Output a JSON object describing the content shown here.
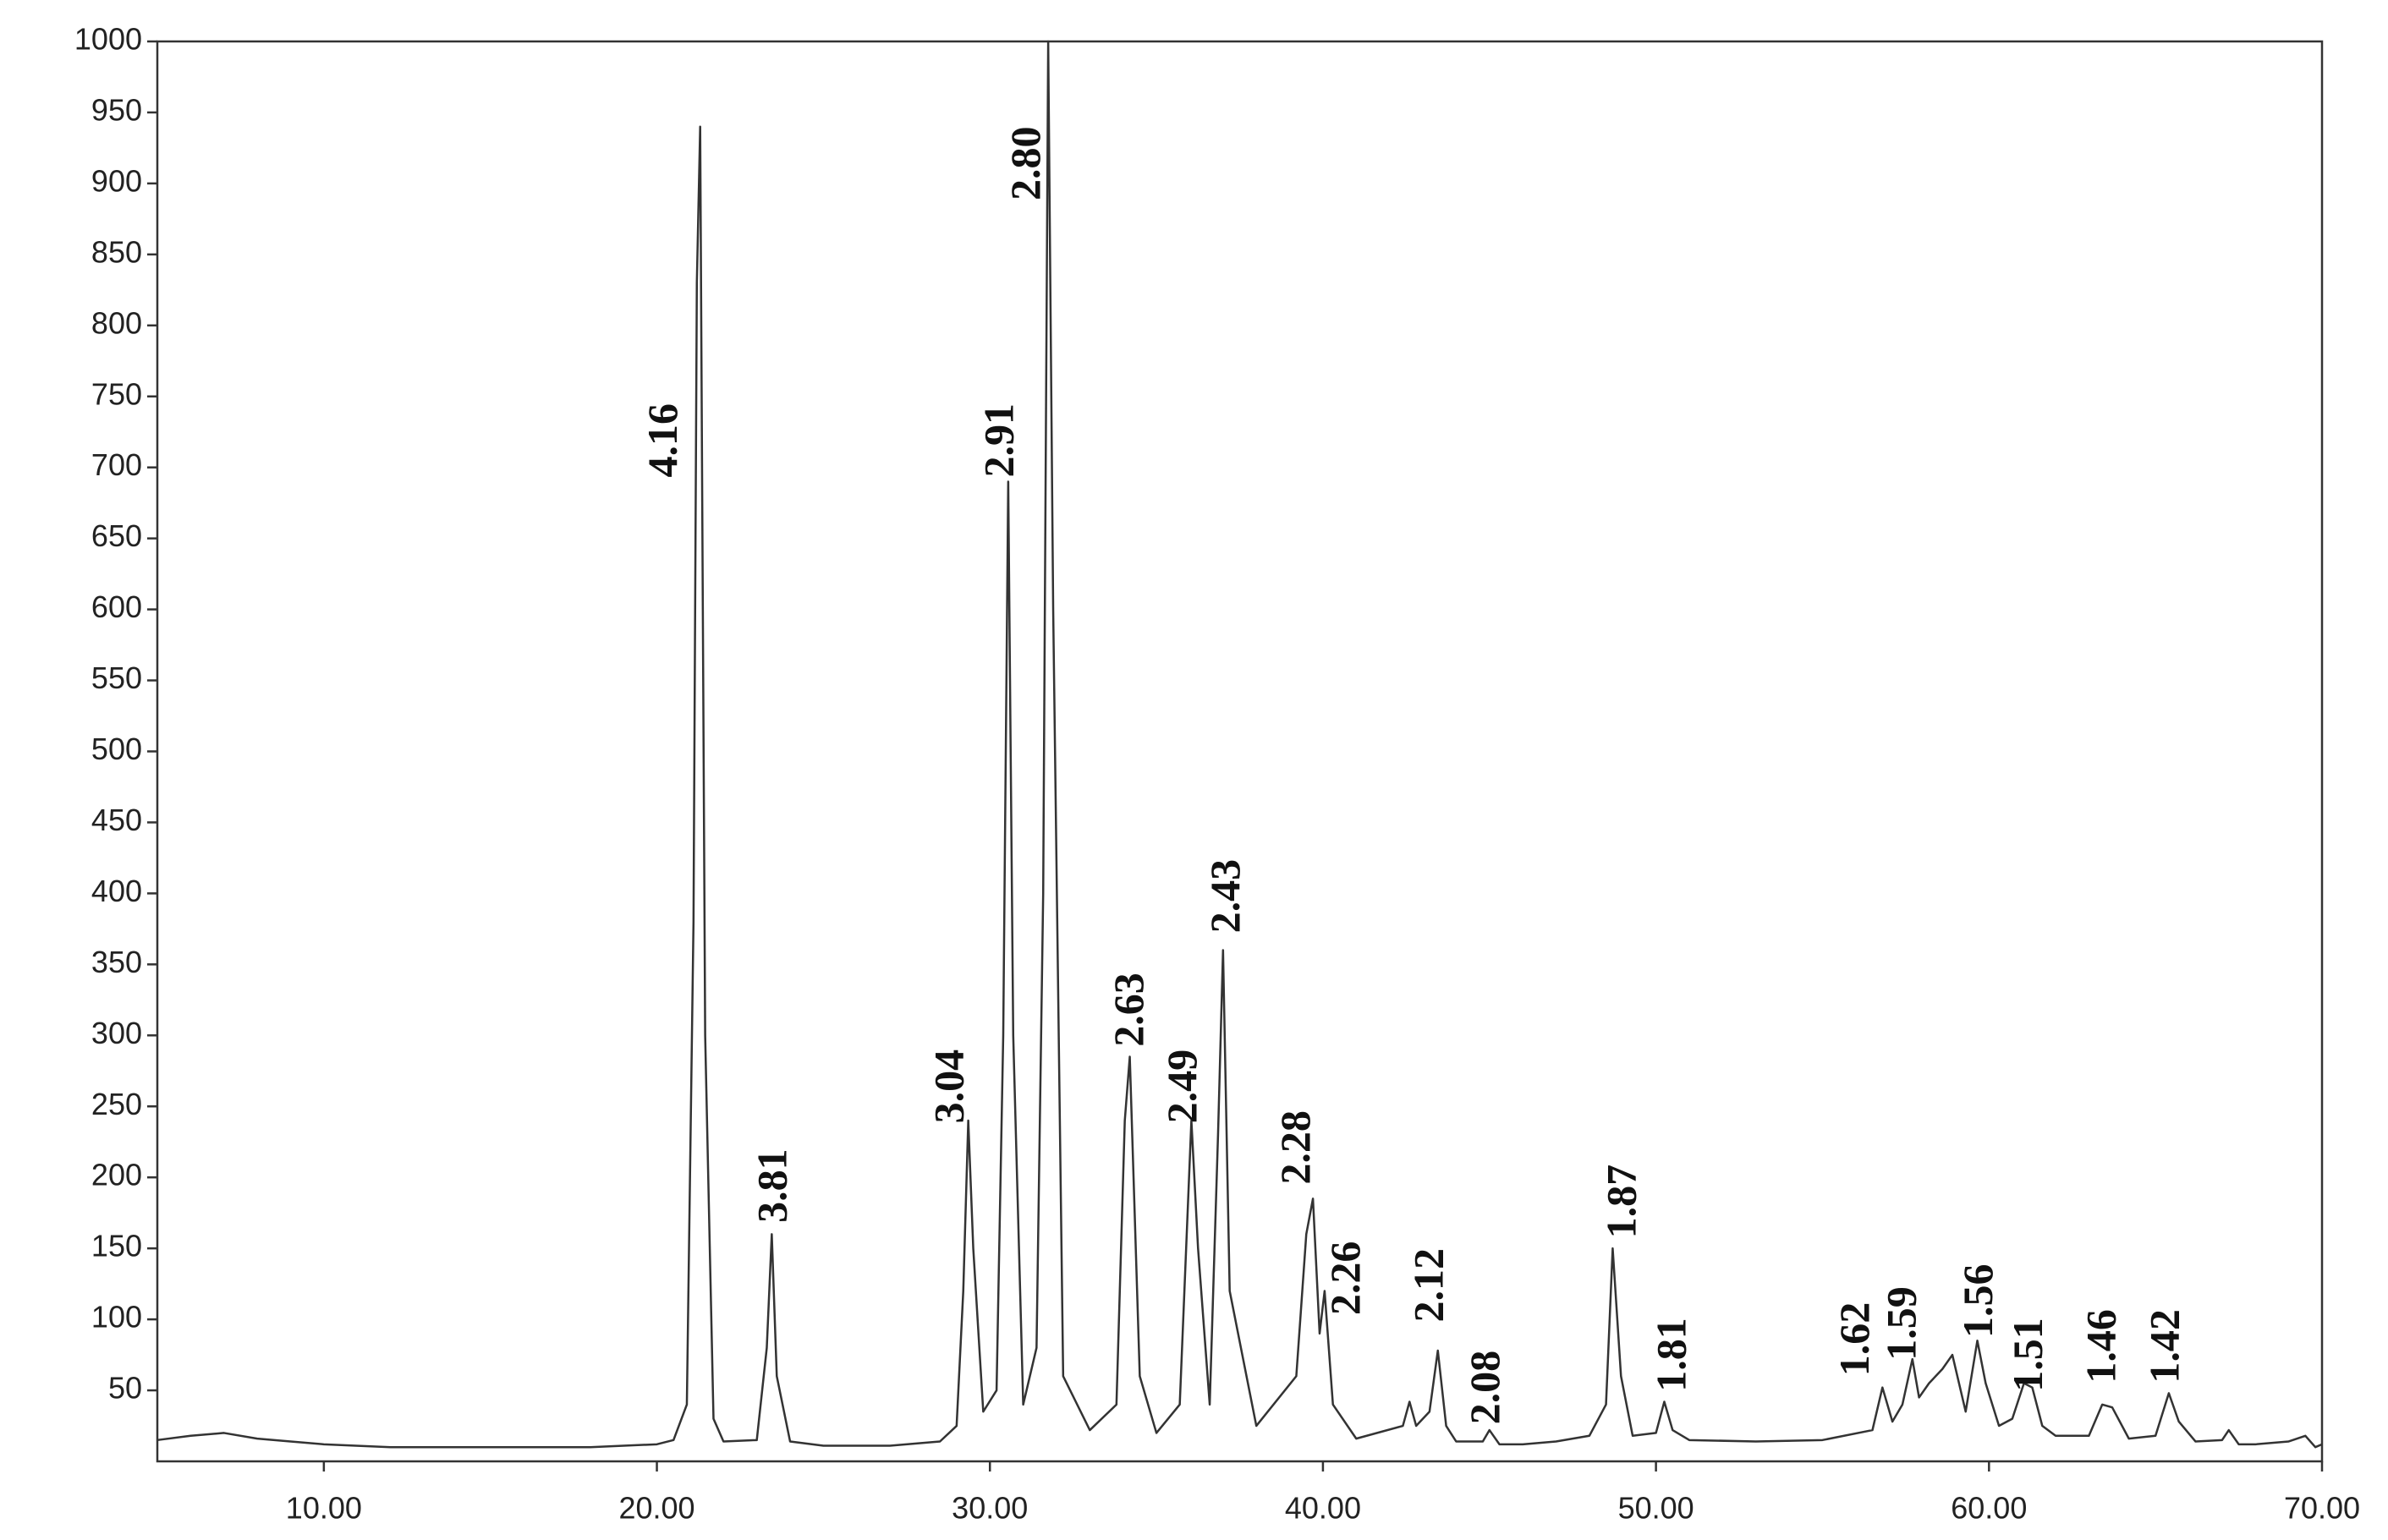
{
  "chart_data": {
    "type": "line",
    "x": [
      5,
      6,
      7,
      8,
      9,
      10,
      12,
      14,
      16,
      18,
      19,
      20,
      20.5,
      20.9,
      21.1,
      21.2,
      21.3,
      21.45,
      21.7,
      22,
      23,
      23.3,
      23.45,
      23.6,
      24,
      25,
      27,
      28.5,
      29,
      29.2,
      29.35,
      29.5,
      29.8,
      30.2,
      30.4,
      30.55,
      30.7,
      31,
      31.4,
      31.6,
      31.75,
      31.9,
      32.2,
      33,
      33.8,
      34.05,
      34.2,
      34.5,
      35,
      35.7,
      36.05,
      36.25,
      36.6,
      36.85,
      37.0,
      37.2,
      38,
      39.2,
      39.5,
      39.7,
      39.9,
      40.05,
      40.3,
      41,
      42.4,
      42.6,
      42.8,
      43.2,
      43.45,
      43.7,
      44,
      44.8,
      45.0,
      45.3,
      46,
      47,
      48,
      48.5,
      48.7,
      48.95,
      49.3,
      50,
      50.25,
      50.5,
      51,
      53,
      55,
      56.5,
      56.8,
      57.1,
      57.4,
      57.7,
      57.9,
      58.2,
      58.6,
      58.9,
      59.3,
      59.65,
      59.9,
      60.3,
      60.7,
      61.05,
      61.3,
      61.6,
      62,
      63,
      63.4,
      63.7,
      64.2,
      65,
      65.4,
      65.7,
      66.2,
      67,
      67.2,
      67.5,
      68,
      69,
      69.5,
      69.8,
      70
    ],
    "series": [
      {
        "color": "#333333",
        "values": [
          15,
          18,
          20,
          16,
          14,
          12,
          10,
          10,
          10,
          10,
          11,
          12,
          15,
          40,
          380,
          830,
          940,
          300,
          30,
          14,
          15,
          80,
          160,
          60,
          14,
          11,
          11,
          14,
          25,
          120,
          240,
          150,
          35,
          50,
          300,
          690,
          300,
          40,
          80,
          400,
          1000,
          600,
          60,
          22,
          40,
          240,
          285,
          60,
          20,
          40,
          240,
          150,
          40,
          230,
          360,
          120,
          25,
          60,
          160,
          185,
          90,
          120,
          40,
          16,
          25,
          42,
          25,
          35,
          78,
          25,
          14,
          14,
          22,
          12,
          12,
          14,
          18,
          40,
          150,
          60,
          18,
          20,
          42,
          22,
          15,
          14,
          15,
          22,
          52,
          28,
          40,
          72,
          45,
          55,
          65,
          75,
          35,
          85,
          55,
          25,
          30,
          55,
          52,
          25,
          18,
          18,
          40,
          38,
          16,
          18,
          48,
          28,
          14,
          15,
          22,
          12,
          12,
          14,
          18,
          10,
          12
        ]
      }
    ],
    "xlim": [
      5,
      70
    ],
    "xticks": [
      {
        "value": 10,
        "label": "10.00"
      },
      {
        "value": 20,
        "label": "20.00"
      },
      {
        "value": 30,
        "label": "30.00"
      },
      {
        "value": 40,
        "label": "40.00"
      },
      {
        "value": 50,
        "label": "50.00"
      },
      {
        "value": 60,
        "label": "60.00"
      },
      {
        "value": 70,
        "label": "70.00"
      }
    ],
    "ylim": [
      0,
      1000
    ],
    "yticks": [
      50,
      100,
      150,
      200,
      250,
      300,
      350,
      400,
      450,
      500,
      550,
      600,
      650,
      700,
      750,
      800,
      850,
      900,
      950,
      1000
    ],
    "annotations": [
      {
        "text": "4.16",
        "x": 20.3,
        "y": 693
      },
      {
        "text": "3.81",
        "x": 23.6,
        "y": 168
      },
      {
        "text": "3.04",
        "x": 28.9,
        "y": 238
      },
      {
        "text": "2.91",
        "x": 30.4,
        "y": 693
      },
      {
        "text": "2.80",
        "x": 31.2,
        "y": 888
      },
      {
        "text": "2.63",
        "x": 34.3,
        "y": 292
      },
      {
        "text": "2.49",
        "x": 35.9,
        "y": 238
      },
      {
        "text": "2.43",
        "x": 37.2,
        "y": 372
      },
      {
        "text": "2.28",
        "x": 39.3,
        "y": 195
      },
      {
        "text": "2.26",
        "x": 40.8,
        "y": 103
      },
      {
        "text": "2.12",
        "x": 43.3,
        "y": 98
      },
      {
        "text": "2.08",
        "x": 45.0,
        "y": 26
      },
      {
        "text": "1.87",
        "x": 49.1,
        "y": 157
      },
      {
        "text": "1.81",
        "x": 50.6,
        "y": 49
      },
      {
        "text": "1.62",
        "x": 56.1,
        "y": 60
      },
      {
        "text": "1.59",
        "x": 57.5,
        "y": 71
      },
      {
        "text": "1.56",
        "x": 59.8,
        "y": 87
      },
      {
        "text": "1.51",
        "x": 61.3,
        "y": 49
      },
      {
        "text": "1.46",
        "x": 63.5,
        "y": 55
      },
      {
        "text": "1.42",
        "x": 65.4,
        "y": 55
      }
    ]
  }
}
